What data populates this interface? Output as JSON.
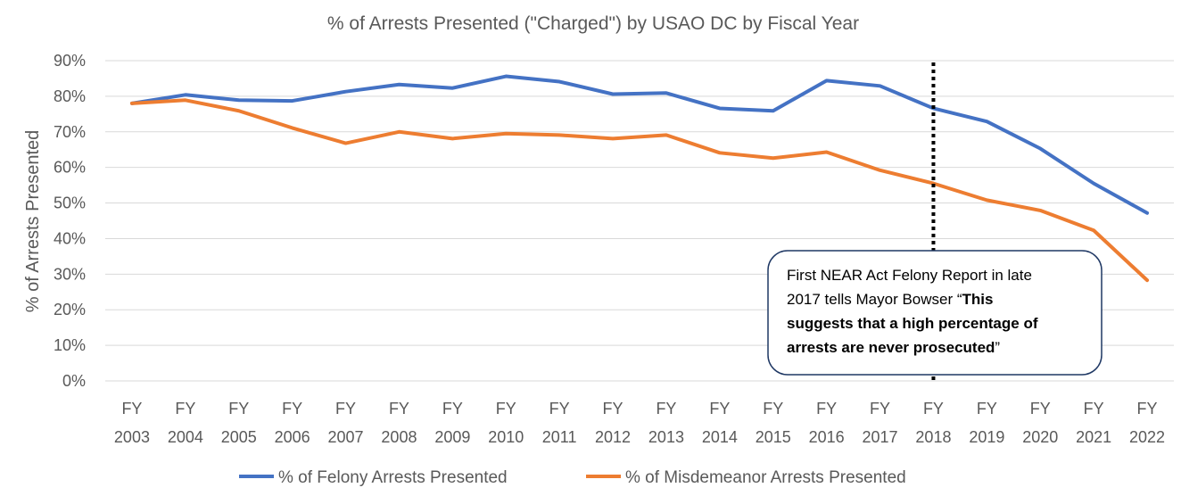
{
  "chart_data": {
    "type": "line",
    "title": "% of Arrests Presented (\"Charged\") by USAO DC by Fiscal Year",
    "xlabel": "",
    "ylabel": "% of Arrests Presented",
    "ylim": [
      0,
      90
    ],
    "yticks": [
      0,
      10,
      20,
      30,
      40,
      50,
      60,
      70,
      80,
      90
    ],
    "ytick_labels": [
      "0%",
      "10%",
      "20%",
      "30%",
      "40%",
      "50%",
      "60%",
      "70%",
      "80%",
      "90%"
    ],
    "grid": true,
    "categories": [
      {
        "line1": "FY",
        "line2": "2003"
      },
      {
        "line1": "FY",
        "line2": "2004"
      },
      {
        "line1": "FY",
        "line2": "2005"
      },
      {
        "line1": "FY",
        "line2": "2006"
      },
      {
        "line1": "FY",
        "line2": "2007"
      },
      {
        "line1": "FY",
        "line2": "2008"
      },
      {
        "line1": "FY",
        "line2": "2009"
      },
      {
        "line1": "FY",
        "line2": "2010"
      },
      {
        "line1": "FY",
        "line2": "2011"
      },
      {
        "line1": "FY",
        "line2": "2012"
      },
      {
        "line1": "FY",
        "line2": "2013"
      },
      {
        "line1": "FY",
        "line2": "2014"
      },
      {
        "line1": "FY",
        "line2": "2015"
      },
      {
        "line1": "FY",
        "line2": "2016"
      },
      {
        "line1": "FY",
        "line2": "2017"
      },
      {
        "line1": "FY",
        "line2": "2018"
      },
      {
        "line1": "FY",
        "line2": "2019"
      },
      {
        "line1": "FY",
        "line2": "2020"
      },
      {
        "line1": "FY",
        "line2": "2021"
      },
      {
        "line1": "FY",
        "line2": "2022"
      }
    ],
    "series": [
      {
        "name": "% of Felony Arrests Presented",
        "color": "#4472c4",
        "values": [
          78,
          80.4,
          78.9,
          78.7,
          81.3,
          83.3,
          82.3,
          85.6,
          84.1,
          80.6,
          80.9,
          76.6,
          75.9,
          84.4,
          82.9,
          76.6,
          72.9,
          65.3,
          55.5,
          47.2
        ]
      },
      {
        "name": "% of Misdemeanor Arrests Presented",
        "color": "#ed7d31",
        "values": [
          78,
          78.9,
          75.9,
          71.1,
          66.8,
          70,
          68.1,
          69.5,
          69.1,
          68.1,
          69.1,
          64.1,
          62.6,
          64.3,
          59.2,
          55.5,
          50.8,
          47.9,
          42.3,
          28.3
        ]
      }
    ],
    "legend_position": "bottom",
    "marker_line": {
      "category": "FY 2018",
      "style": "dotted",
      "color": "#000000"
    },
    "annotation": {
      "line1": "First NEAR Act Felony Report in late",
      "line2_regular": "2017 tells Mayor Bowser “",
      "line2_bold": "This",
      "line3_bold": "suggests that a high percentage of",
      "line4_bold": "arrests are never prosecuted",
      "line4_regular": "”"
    }
  }
}
